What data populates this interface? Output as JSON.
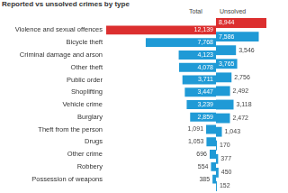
{
  "chart_data": {
    "type": "bar",
    "title": "Reported vs unsolved crimes by type",
    "orientation": "horizontal",
    "categories": [
      "Violence and sexual offences",
      "Bicycle theft",
      "Criminal damage and arson",
      "Other theft",
      "Public order",
      "Shoplifting",
      "Vehicle crime",
      "Burglary",
      "Theft from the person",
      "Drugs",
      "Other crime",
      "Robbery",
      "Possession of weapons"
    ],
    "series": [
      {
        "name": "Total",
        "values": [
          12139,
          7768,
          4123,
          4078,
          3711,
          3447,
          3239,
          2859,
          1091,
          1053,
          696,
          554,
          385
        ],
        "value_labels": [
          "12,139",
          "7,768",
          "4,123",
          "4,078",
          "3,711",
          "3,447",
          "3,239",
          "2,859",
          "1,091",
          "1,053",
          "696",
          "554",
          "385"
        ],
        "colors": [
          "#dc2f2f",
          "#1f9ad6",
          "#1f9ad6",
          "#1f9ad6",
          "#1f9ad6",
          "#1f9ad6",
          "#1f9ad6",
          "#1f9ad6",
          "#1f9ad6",
          "#1f9ad6",
          "#1f9ad6",
          "#1f9ad6",
          "#1f9ad6"
        ]
      },
      {
        "name": "Unsolved",
        "values": [
          8944,
          7586,
          3546,
          3765,
          2756,
          2492,
          3118,
          2472,
          1043,
          170,
          377,
          450,
          152
        ],
        "value_labels": [
          "8,944",
          "7,586",
          "3,546",
          "3,765",
          "2,756",
          "2,492",
          "3,118",
          "2,472",
          "1,043",
          "170",
          "377",
          "450",
          "152"
        ],
        "colors": [
          "#dc2f2f",
          "#1f9ad6",
          "#1f9ad6",
          "#1f9ad6",
          "#1f9ad6",
          "#1f9ad6",
          "#1f9ad6",
          "#1f9ad6",
          "#1f9ad6",
          "#1f9ad6",
          "#1f9ad6",
          "#1f9ad6",
          "#1f9ad6"
        ]
      }
    ],
    "xlim": [
      0,
      12139
    ],
    "data_labels": true,
    "tick_labels": "y",
    "grid": false
  }
}
